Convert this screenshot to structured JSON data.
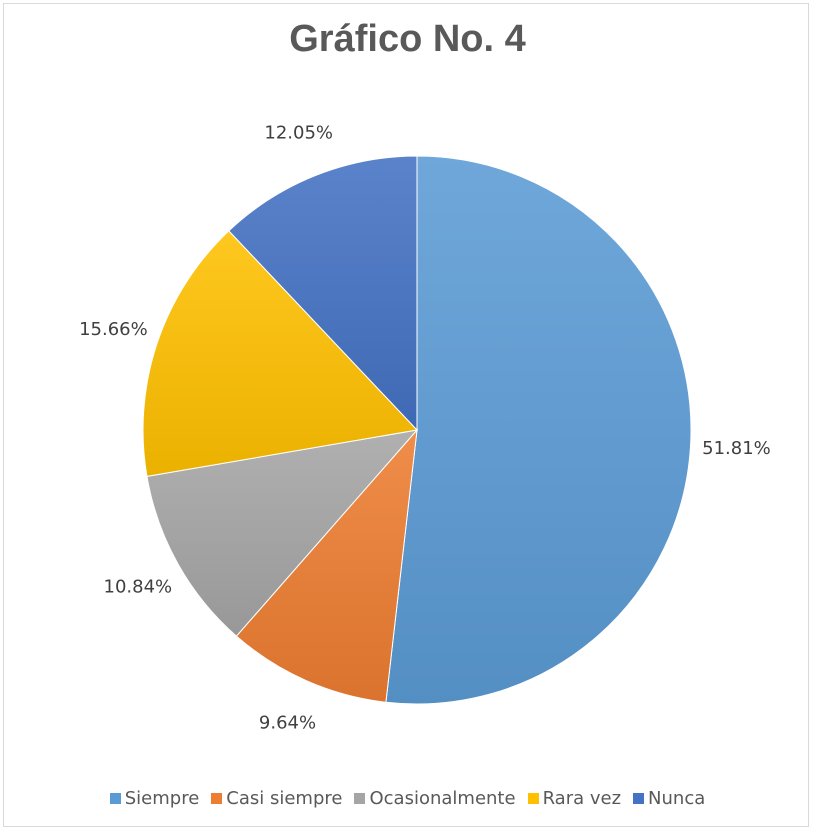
{
  "chart_data": {
    "type": "pie",
    "title": "Gráfico No. 4",
    "legend_position": "bottom",
    "slices": [
      {
        "label": "Siempre",
        "value": 51.81,
        "display": "51.81%",
        "color": "#5B9BD5"
      },
      {
        "label": "Casi siempre",
        "value": 9.64,
        "display": "9.64%",
        "color": "#ED7D31"
      },
      {
        "label": "Ocasionalmente",
        "value": 10.84,
        "display": "10.84%",
        "color": "#A5A5A5"
      },
      {
        "label": "Rara vez",
        "value": 15.66,
        "display": "15.66%",
        "color": "#FFC000"
      },
      {
        "label": "Nunca",
        "value": 12.05,
        "display": "12.05%",
        "color": "#4472C4"
      }
    ]
  }
}
